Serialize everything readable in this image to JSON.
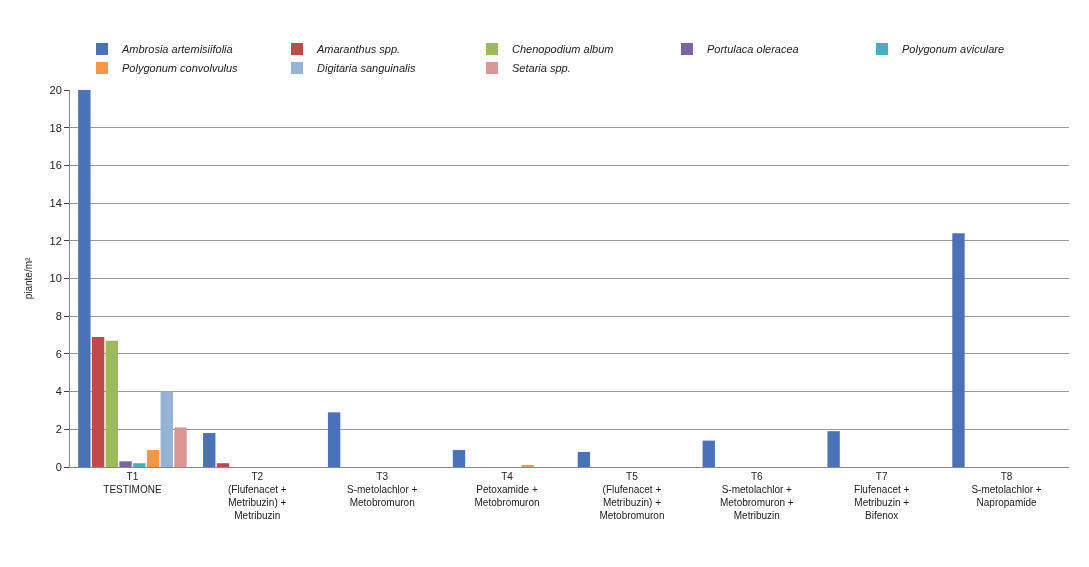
{
  "chart_data": {
    "type": "bar",
    "ylabel": "piante/m²",
    "categories": [
      "T1\nTESTIMONE",
      "T2\n(Flufenacet +\nMetribuzin) +\nMetribuzin",
      "T3\nS-metolachlor +\nMetobromuron",
      "T4\nPetoxamide +\nMetobromuron",
      "T5\n(Flufenacet +\nMetribuzin) +\nMetobromuron",
      "T6\nS-metolachlor +\nMetobromuron +\nMetribuzin",
      "T7\nFlufenacet +\nMetribuzin +\nBifenox",
      "T8\nS-metolachlor +\nNapropamide"
    ],
    "series": [
      {
        "name": "Ambrosia artemisiifolia",
        "color": "#4a72b8",
        "values": [
          20,
          1.8,
          2.9,
          0.9,
          0.8,
          1.4,
          1.9,
          12.4
        ]
      },
      {
        "name": "Amaranthus spp.",
        "color": "#be4b48",
        "values": [
          6.9,
          0.2,
          0,
          0,
          0,
          0,
          0,
          0
        ]
      },
      {
        "name": "Chenopodium album",
        "color": "#9bbb59",
        "values": [
          6.7,
          0,
          0,
          0,
          0,
          0,
          0,
          0
        ]
      },
      {
        "name": "Portulaca oleracea",
        "color": "#7e62a1",
        "values": [
          0.3,
          0,
          0,
          0,
          0,
          0,
          0,
          0
        ]
      },
      {
        "name": "Polygonum aviculare",
        "color": "#4bacc6",
        "values": [
          0.2,
          0,
          0,
          0,
          0,
          0,
          0,
          0
        ]
      },
      {
        "name": "Polygonum convolvulus",
        "color": "#f79646",
        "values": [
          0.9,
          0,
          0,
          0.1,
          0,
          0,
          0,
          0
        ]
      },
      {
        "name": "Digitaria sanguinalis",
        "color": "#95b3d7",
        "values": [
          4.0,
          0,
          0,
          0,
          0,
          0,
          0,
          0
        ]
      },
      {
        "name": "Setaria spp.",
        "color": "#d99694",
        "values": [
          2.1,
          0,
          0,
          0,
          0,
          0,
          0,
          0
        ]
      }
    ],
    "ylim": [
      0,
      20
    ],
    "yticks": [
      0,
      2,
      4,
      6,
      8,
      10,
      12,
      14,
      16,
      18,
      20
    ],
    "grid": "y",
    "legend": "top"
  }
}
